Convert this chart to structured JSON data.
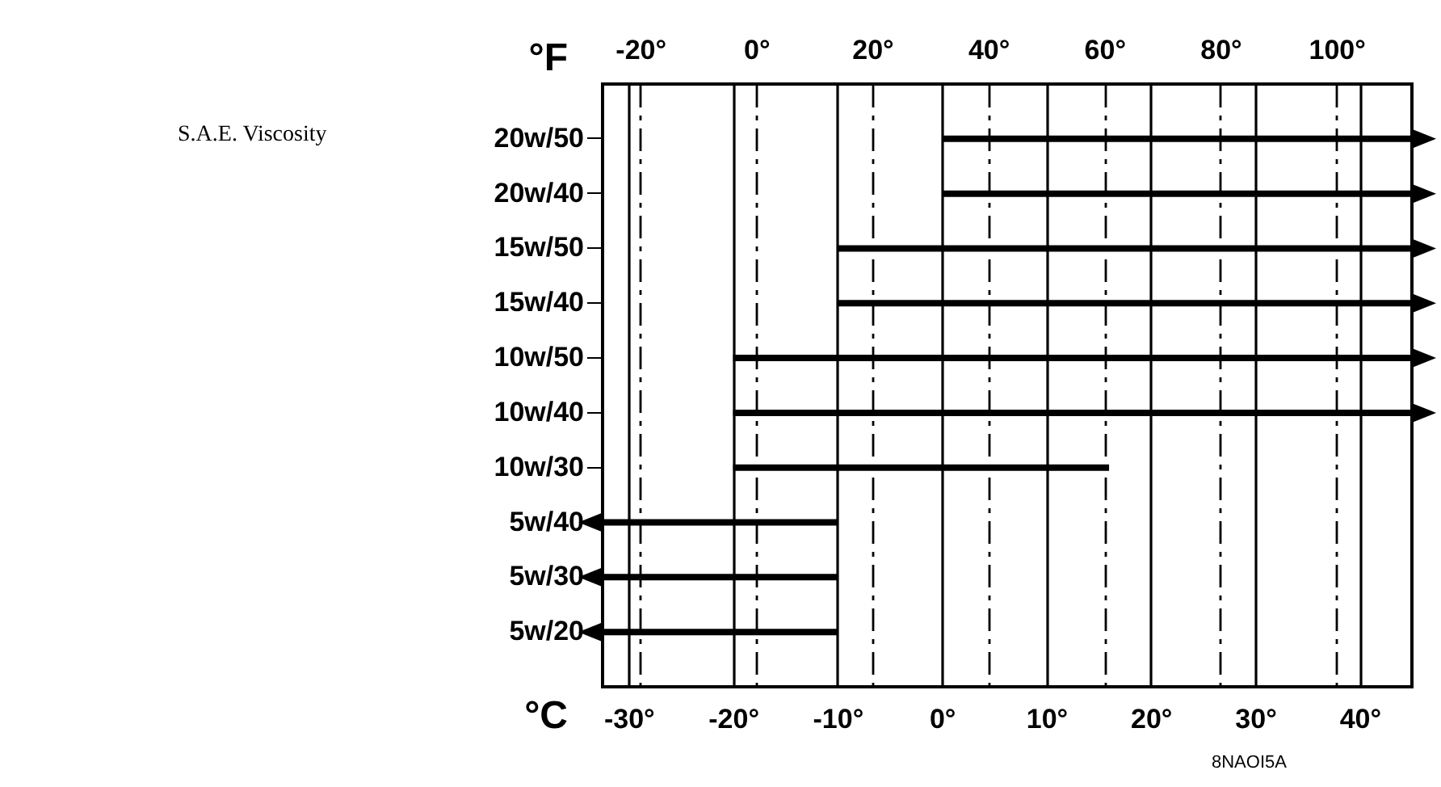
{
  "chart_data": {
    "type": "bar",
    "orientation": "horizontal",
    "xlabel": "°C",
    "x2label": "°F",
    "categories": [
      "20w/50",
      "20w/40",
      "15w/50",
      "15w/40",
      "10w/50",
      "10w/40",
      "10w/30",
      "5w/40",
      "5w/30",
      "5w/20"
    ],
    "base": [
      0,
      0,
      -10,
      -10,
      -20,
      -20,
      -20,
      -10,
      -10,
      -10
    ],
    "values": [
      45,
      45,
      55,
      55,
      65,
      65,
      36,
      -22.5,
      -22.5,
      -22.5
    ],
    "color": "#000000",
    "xlim": [
      -32.5,
      45
    ],
    "xticks": [
      {
        "value": -30,
        "label": "-30°"
      },
      {
        "value": -20,
        "label": "-20°"
      },
      {
        "value": -10,
        "label": "-10°"
      },
      {
        "value": 0,
        "label": "0°"
      },
      {
        "value": 10,
        "label": "10°"
      },
      {
        "value": 20,
        "label": "20°"
      },
      {
        "value": 30,
        "label": "30°"
      },
      {
        "value": 40,
        "label": "40°"
      }
    ],
    "x2lim": [
      -26.5,
      113
    ],
    "x2ticks": [
      {
        "value": -20,
        "label": "-20°"
      },
      {
        "value": 0,
        "label": "0°"
      },
      {
        "value": 20,
        "label": "20°"
      },
      {
        "value": 40,
        "label": "40°"
      },
      {
        "value": 60,
        "label": "60°"
      },
      {
        "value": 80,
        "label": "80°"
      },
      {
        "value": 100,
        "label": "100°"
      }
    ],
    "grid": true,
    "annotations": [
      "S.A.E. Viscosity",
      "8NAOI5A"
    ]
  }
}
